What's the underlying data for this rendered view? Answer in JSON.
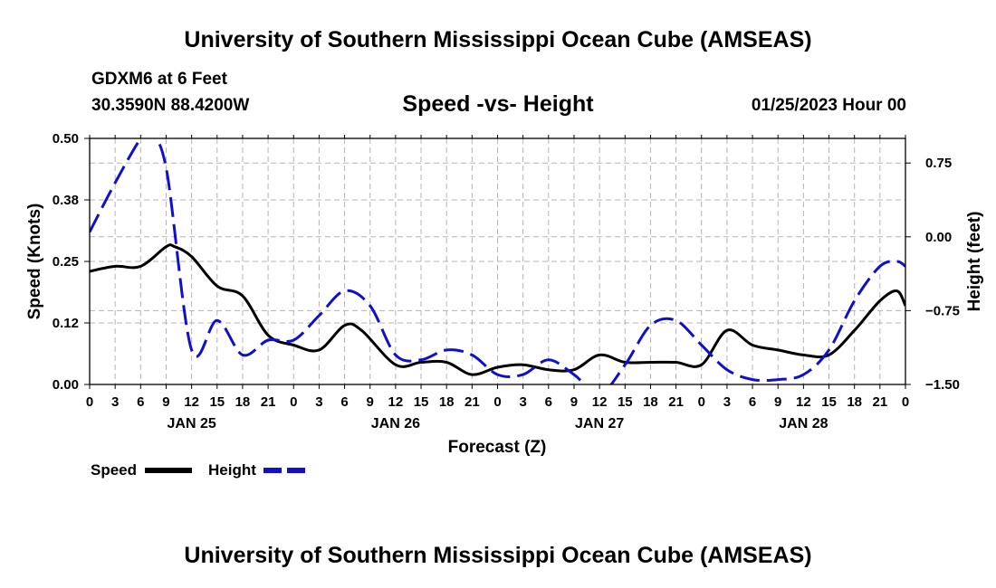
{
  "header": {
    "title": "University of Southern Mississippi Ocean Cube (AMSEAS)",
    "station": "GDXM6 at 6 Feet",
    "coords": "30.3590N  88.4200W",
    "subtitle": "Speed -vs- Height",
    "datetime": "01/25/2023 Hour 00"
  },
  "footer": {
    "title": "University of Southern Mississippi Ocean Cube (AMSEAS)"
  },
  "colors": {
    "speed": "#000000",
    "height": "#1010cc",
    "grid": "#b4b4b4"
  },
  "chart_data": {
    "type": "line",
    "title": "Speed -vs- Height",
    "xlabel": "Forecast (Z)",
    "ylabel": "Speed (Knots)",
    "ylabel_right": "Height (feet)",
    "x_unit": "forecast hour",
    "xlim": [
      0,
      96
    ],
    "ylim": [
      0,
      0.5
    ],
    "ylim_right": [
      -1.5,
      1.0
    ],
    "y_ticks": [
      {
        "value": 0.0,
        "label": "0.00"
      },
      {
        "value": 0.125,
        "label": "0.12"
      },
      {
        "value": 0.25,
        "label": "0.25"
      },
      {
        "value": 0.375,
        "label": "0.38"
      },
      {
        "value": 0.5,
        "label": "0.50"
      }
    ],
    "y_ticks_right": [
      {
        "value": -1.5,
        "label": "−1.50"
      },
      {
        "value": -0.75,
        "label": "−0.75"
      },
      {
        "value": 0.0,
        "label": "0.00"
      },
      {
        "value": 0.75,
        "label": "0.75"
      }
    ],
    "x_ticks": [
      {
        "value": 0,
        "label": "0"
      },
      {
        "value": 3,
        "label": "3"
      },
      {
        "value": 6,
        "label": "6"
      },
      {
        "value": 9,
        "label": "9"
      },
      {
        "value": 12,
        "label": "12"
      },
      {
        "value": 15,
        "label": "15"
      },
      {
        "value": 18,
        "label": "18"
      },
      {
        "value": 21,
        "label": "21"
      },
      {
        "value": 24,
        "label": "0"
      },
      {
        "value": 27,
        "label": "3"
      },
      {
        "value": 30,
        "label": "6"
      },
      {
        "value": 33,
        "label": "9"
      },
      {
        "value": 36,
        "label": "12"
      },
      {
        "value": 39,
        "label": "15"
      },
      {
        "value": 42,
        "label": "18"
      },
      {
        "value": 45,
        "label": "21"
      },
      {
        "value": 48,
        "label": "0"
      },
      {
        "value": 51,
        "label": "3"
      },
      {
        "value": 54,
        "label": "6"
      },
      {
        "value": 57,
        "label": "9"
      },
      {
        "value": 60,
        "label": "12"
      },
      {
        "value": 63,
        "label": "15"
      },
      {
        "value": 66,
        "label": "18"
      },
      {
        "value": 69,
        "label": "21"
      },
      {
        "value": 72,
        "label": "0"
      },
      {
        "value": 75,
        "label": "3"
      },
      {
        "value": 78,
        "label": "6"
      },
      {
        "value": 81,
        "label": "9"
      },
      {
        "value": 84,
        "label": "12"
      },
      {
        "value": 87,
        "label": "15"
      },
      {
        "value": 90,
        "label": "18"
      },
      {
        "value": 93,
        "label": "21"
      },
      {
        "value": 96,
        "label": "0"
      }
    ],
    "day_labels": [
      {
        "value": 12,
        "label": "JAN 25"
      },
      {
        "value": 36,
        "label": "JAN 26"
      },
      {
        "value": 60,
        "label": "JAN 27"
      },
      {
        "value": 84,
        "label": "JAN 28"
      }
    ],
    "grid": true,
    "legend": [
      {
        "name": "Speed",
        "style": "solid"
      },
      {
        "name": "Height",
        "style": "dashed"
      }
    ],
    "legend_position": "bottom-left",
    "series": [
      {
        "name": "Speed",
        "axis": "left",
        "style": "solid",
        "x": [
          0,
          3,
          6,
          9,
          10,
          12,
          15,
          18,
          21,
          24,
          27,
          30,
          32,
          36,
          39,
          42,
          45,
          48,
          51,
          54,
          57,
          60,
          63,
          66,
          69,
          72,
          75,
          78,
          81,
          84,
          87,
          90,
          93,
          95,
          96
        ],
        "values": [
          0.23,
          0.24,
          0.24,
          0.28,
          0.28,
          0.26,
          0.2,
          0.18,
          0.1,
          0.08,
          0.07,
          0.12,
          0.11,
          0.04,
          0.045,
          0.045,
          0.02,
          0.035,
          0.04,
          0.03,
          0.03,
          0.06,
          0.045,
          0.045,
          0.045,
          0.04,
          0.11,
          0.08,
          0.07,
          0.06,
          0.06,
          0.11,
          0.17,
          0.19,
          0.16
        ]
      },
      {
        "name": "Height",
        "axis": "right",
        "style": "dashed",
        "x": [
          0,
          3,
          6,
          7,
          9,
          12,
          15,
          18,
          21,
          24,
          27,
          30,
          33,
          36,
          39,
          42,
          45,
          48,
          51,
          54,
          57,
          60,
          63,
          66,
          69,
          72,
          75,
          78,
          81,
          84,
          87,
          90,
          93,
          95,
          96
        ],
        "values": [
          0.05,
          0.55,
          1.0,
          1.05,
          0.7,
          -1.15,
          -0.85,
          -1.2,
          -1.05,
          -1.05,
          -0.8,
          -0.55,
          -0.7,
          -1.2,
          -1.25,
          -1.15,
          -1.2,
          -1.4,
          -1.4,
          -1.25,
          -1.4,
          -1.6,
          -1.3,
          -0.9,
          -0.85,
          -1.1,
          -1.35,
          -1.45,
          -1.45,
          -1.4,
          -1.15,
          -0.65,
          -0.3,
          -0.25,
          -0.3
        ]
      }
    ]
  }
}
